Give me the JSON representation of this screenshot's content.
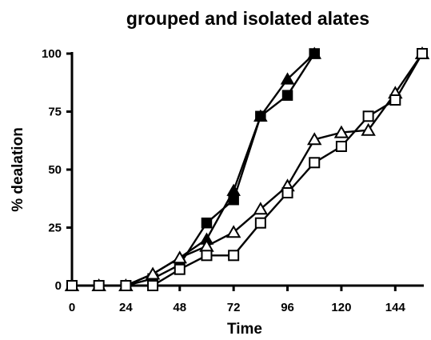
{
  "chart_data": {
    "type": "line",
    "title": "grouped and isolated alates",
    "xlabel": "Time",
    "ylabel": "% dealation",
    "xlim": [
      0,
      156
    ],
    "ylim": [
      0,
      100
    ],
    "x_ticks": [
      "0",
      "24",
      "48",
      "72",
      "96",
      "120",
      "144"
    ],
    "y_ticks": [
      "0",
      "25",
      "50",
      "75",
      "100"
    ],
    "grid": false,
    "legend": "none",
    "series": [
      {
        "marker": "filled-triangle",
        "x": [
          0,
          12,
          24,
          36,
          48,
          60,
          72,
          84,
          96,
          108
        ],
        "values": [
          0,
          0,
          0,
          5,
          12,
          20,
          41,
          73,
          89,
          100
        ]
      },
      {
        "marker": "filled-square",
        "x": [
          0,
          12,
          24,
          36,
          48,
          60,
          72,
          84,
          96,
          108
        ],
        "values": [
          0,
          0,
          0,
          3,
          9,
          27,
          37,
          73,
          82,
          100
        ]
      },
      {
        "marker": "open-triangle",
        "x": [
          0,
          12,
          24,
          36,
          48,
          60,
          72,
          84,
          96,
          108,
          120,
          132,
          144,
          156
        ],
        "values": [
          0,
          0,
          0,
          5,
          12,
          17,
          23,
          33,
          43,
          63,
          66,
          67,
          83,
          100
        ]
      },
      {
        "marker": "open-square",
        "x": [
          0,
          12,
          24,
          36,
          48,
          60,
          72,
          84,
          96,
          108,
          120,
          132,
          144,
          156
        ],
        "values": [
          0,
          0,
          0,
          0,
          7,
          13,
          13,
          27,
          40,
          53,
          60,
          73,
          80,
          100
        ]
      }
    ]
  },
  "colors": {
    "line": "#000000",
    "fill": "#000000",
    "open_fill": "#ffffff"
  }
}
